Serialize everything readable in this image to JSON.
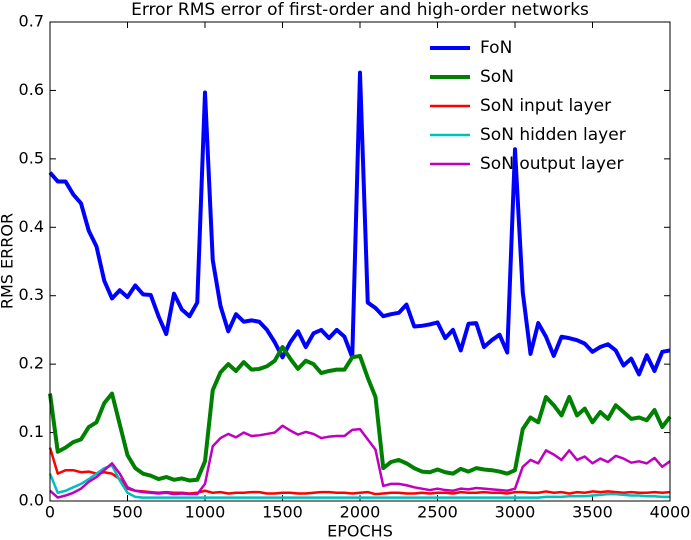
{
  "chart_data": {
    "type": "line",
    "title": "Error RMS error of first-order and high-order networks",
    "xlabel": "EPOCHS",
    "ylabel": "RMS ERROR",
    "x": [
      0,
      50,
      100,
      150,
      200,
      250,
      300,
      350,
      400,
      450,
      500,
      550,
      600,
      650,
      700,
      750,
      800,
      850,
      900,
      950,
      1000,
      1050,
      1100,
      1150,
      1200,
      1250,
      1300,
      1350,
      1400,
      1450,
      1500,
      1550,
      1600,
      1650,
      1700,
      1750,
      1800,
      1850,
      1900,
      1950,
      2000,
      2050,
      2100,
      2150,
      2200,
      2250,
      2300,
      2350,
      2400,
      2450,
      2500,
      2550,
      2600,
      2650,
      2700,
      2750,
      2800,
      2850,
      2900,
      2950,
      3000,
      3050,
      3100,
      3150,
      3200,
      3250,
      3300,
      3350,
      3400,
      3450,
      3500,
      3550,
      3600,
      3650,
      3700,
      3750,
      3800,
      3850,
      3900,
      3950,
      4000
    ],
    "series": [
      {
        "name": "FoN",
        "color": "#0000ff",
        "width": 4,
        "values": [
          0.48,
          0.467,
          0.467,
          0.448,
          0.435,
          0.395,
          0.372,
          0.322,
          0.296,
          0.308,
          0.298,
          0.315,
          0.302,
          0.301,
          0.27,
          0.244,
          0.303,
          0.28,
          0.27,
          0.29,
          0.597,
          0.352,
          0.285,
          0.248,
          0.273,
          0.262,
          0.264,
          0.262,
          0.25,
          0.232,
          0.21,
          0.232,
          0.248,
          0.225,
          0.245,
          0.25,
          0.238,
          0.25,
          0.24,
          0.21,
          0.626,
          0.29,
          0.282,
          0.27,
          0.273,
          0.275,
          0.287,
          0.255,
          0.256,
          0.258,
          0.261,
          0.238,
          0.25,
          0.22,
          0.259,
          0.26,
          0.225,
          0.235,
          0.243,
          0.217,
          0.514,
          0.305,
          0.215,
          0.26,
          0.24,
          0.212,
          0.24,
          0.238,
          0.235,
          0.23,
          0.218,
          0.225,
          0.229,
          0.22,
          0.198,
          0.208,
          0.185,
          0.213,
          0.19,
          0.218,
          0.22
        ]
      },
      {
        "name": "SoN",
        "color": "#008000",
        "width": 4,
        "values": [
          0.157,
          0.072,
          0.078,
          0.086,
          0.09,
          0.108,
          0.115,
          0.143,
          0.157,
          0.112,
          0.067,
          0.048,
          0.04,
          0.037,
          0.032,
          0.035,
          0.031,
          0.033,
          0.03,
          0.031,
          0.058,
          0.162,
          0.188,
          0.2,
          0.19,
          0.203,
          0.192,
          0.193,
          0.197,
          0.205,
          0.225,
          0.208,
          0.193,
          0.205,
          0.2,
          0.187,
          0.19,
          0.192,
          0.192,
          0.21,
          0.212,
          0.18,
          0.152,
          0.048,
          0.057,
          0.06,
          0.055,
          0.048,
          0.043,
          0.042,
          0.046,
          0.042,
          0.04,
          0.047,
          0.043,
          0.048,
          0.046,
          0.045,
          0.043,
          0.04,
          0.045,
          0.105,
          0.122,
          0.115,
          0.152,
          0.14,
          0.125,
          0.152,
          0.125,
          0.135,
          0.115,
          0.13,
          0.12,
          0.14,
          0.13,
          0.12,
          0.122,
          0.118,
          0.133,
          0.108,
          0.123
        ]
      },
      {
        "name": "SoN input layer",
        "color": "#ff0000",
        "width": 2.5,
        "values": [
          0.078,
          0.04,
          0.045,
          0.045,
          0.042,
          0.043,
          0.04,
          0.042,
          0.04,
          0.032,
          0.018,
          0.015,
          0.014,
          0.013,
          0.012,
          0.013,
          0.012,
          0.012,
          0.011,
          0.012,
          0.015,
          0.012,
          0.013,
          0.011,
          0.012,
          0.012,
          0.013,
          0.013,
          0.011,
          0.011,
          0.012,
          0.012,
          0.011,
          0.011,
          0.012,
          0.013,
          0.013,
          0.012,
          0.012,
          0.011,
          0.012,
          0.013,
          0.01,
          0.011,
          0.012,
          0.012,
          0.011,
          0.011,
          0.012,
          0.011,
          0.012,
          0.012,
          0.011,
          0.013,
          0.012,
          0.012,
          0.013,
          0.012,
          0.012,
          0.011,
          0.013,
          0.013,
          0.012,
          0.012,
          0.014,
          0.012,
          0.013,
          0.011,
          0.013,
          0.012,
          0.014,
          0.013,
          0.014,
          0.013,
          0.012,
          0.013,
          0.012,
          0.012,
          0.013,
          0.012,
          0.013
        ]
      },
      {
        "name": "SoN hidden layer",
        "color": "#00bfbf",
        "width": 2.5,
        "values": [
          0.04,
          0.012,
          0.015,
          0.02,
          0.025,
          0.032,
          0.04,
          0.048,
          0.052,
          0.03,
          0.012,
          0.006,
          0.005,
          0.005,
          0.005,
          0.005,
          0.005,
          0.005,
          0.005,
          0.005,
          0.005,
          0.005,
          0.005,
          0.005,
          0.005,
          0.005,
          0.005,
          0.005,
          0.005,
          0.005,
          0.005,
          0.005,
          0.005,
          0.005,
          0.005,
          0.005,
          0.005,
          0.005,
          0.005,
          0.005,
          0.005,
          0.005,
          0.005,
          0.005,
          0.005,
          0.005,
          0.005,
          0.005,
          0.005,
          0.005,
          0.005,
          0.005,
          0.005,
          0.005,
          0.005,
          0.005,
          0.005,
          0.005,
          0.005,
          0.005,
          0.005,
          0.005,
          0.005,
          0.005,
          0.006,
          0.006,
          0.006,
          0.007,
          0.007,
          0.007,
          0.008,
          0.009,
          0.01,
          0.01,
          0.009,
          0.008,
          0.008,
          0.007,
          0.007,
          0.006,
          0.006
        ]
      },
      {
        "name": "SoN output layer",
        "color": "#bf00bf",
        "width": 2.5,
        "values": [
          0.015,
          0.005,
          0.008,
          0.012,
          0.018,
          0.028,
          0.035,
          0.045,
          0.055,
          0.04,
          0.02,
          0.015,
          0.013,
          0.012,
          0.011,
          0.012,
          0.01,
          0.011,
          0.01,
          0.01,
          0.025,
          0.08,
          0.092,
          0.098,
          0.093,
          0.1,
          0.095,
          0.096,
          0.098,
          0.1,
          0.11,
          0.103,
          0.097,
          0.101,
          0.098,
          0.092,
          0.094,
          0.095,
          0.095,
          0.104,
          0.105,
          0.09,
          0.075,
          0.022,
          0.025,
          0.025,
          0.023,
          0.02,
          0.018,
          0.016,
          0.018,
          0.016,
          0.015,
          0.018,
          0.017,
          0.019,
          0.018,
          0.017,
          0.016,
          0.015,
          0.018,
          0.05,
          0.06,
          0.055,
          0.074,
          0.068,
          0.06,
          0.074,
          0.06,
          0.065,
          0.055,
          0.062,
          0.057,
          0.066,
          0.062,
          0.056,
          0.058,
          0.055,
          0.063,
          0.05,
          0.058
        ]
      }
    ],
    "xlim": [
      0,
      4000
    ],
    "xticks": [
      0,
      500,
      1000,
      1500,
      2000,
      2500,
      3000,
      3500,
      4000
    ],
    "ylim": [
      0,
      0.7
    ],
    "yticks": [
      {
        "value": 0,
        "label": "0.0"
      },
      0.1,
      0.2,
      0.3,
      0.4,
      0.5,
      0.6,
      0.7
    ],
    "grid": false,
    "legend": "upper right"
  }
}
